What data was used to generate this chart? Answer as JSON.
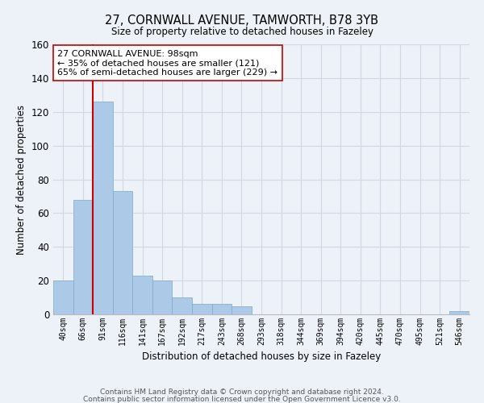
{
  "title": "27, CORNWALL AVENUE, TAMWORTH, B78 3YB",
  "subtitle": "Size of property relative to detached houses in Fazeley",
  "xlabel": "Distribution of detached houses by size in Fazeley",
  "ylabel": "Number of detached properties",
  "bin_labels": [
    "40sqm",
    "66sqm",
    "91sqm",
    "116sqm",
    "141sqm",
    "167sqm",
    "192sqm",
    "217sqm",
    "243sqm",
    "268sqm",
    "293sqm",
    "318sqm",
    "344sqm",
    "369sqm",
    "394sqm",
    "420sqm",
    "445sqm",
    "470sqm",
    "495sqm",
    "521sqm",
    "546sqm"
  ],
  "bar_values": [
    20,
    68,
    126,
    73,
    23,
    20,
    10,
    6,
    6,
    5,
    0,
    0,
    0,
    0,
    0,
    0,
    0,
    0,
    0,
    0,
    2
  ],
  "bar_color": "#adc9e8",
  "bar_edge_color": "#7aaac8",
  "vline_bin_index": 2,
  "vline_color": "#cc0000",
  "ylim": [
    0,
    160
  ],
  "yticks": [
    0,
    20,
    40,
    60,
    80,
    100,
    120,
    140,
    160
  ],
  "annotation_text": "27 CORNWALL AVENUE: 98sqm\n← 35% of detached houses are smaller (121)\n65% of semi-detached houses are larger (229) →",
  "annotation_box_color": "#ffffff",
  "annotation_box_edge": "#cc0000",
  "footer1": "Contains HM Land Registry data © Crown copyright and database right 2024.",
  "footer2": "Contains public sector information licensed under the Open Government Licence v3.0.",
  "background_color": "#edf2f8",
  "grid_color": "#d0d8e4"
}
